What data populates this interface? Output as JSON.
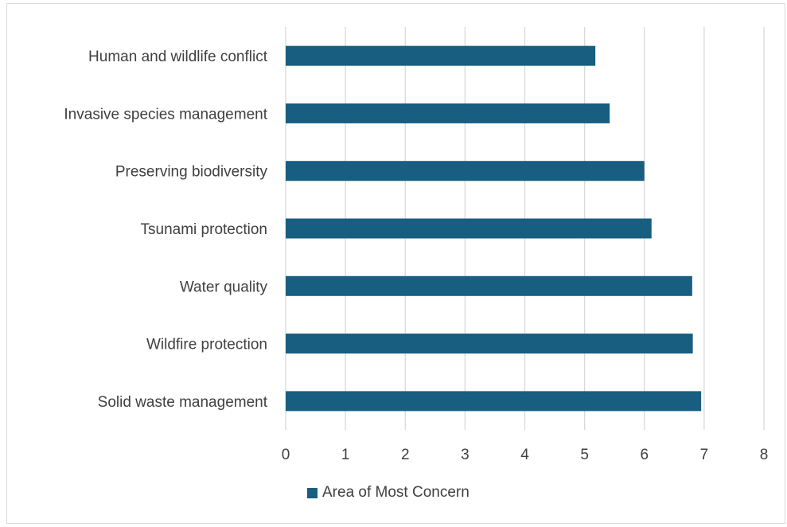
{
  "chart_data": {
    "type": "bar",
    "orientation": "horizontal",
    "categories": [
      "Human and wildlife conflict",
      "Invasive species management",
      "Preserving biodiversity",
      "Tsunami protection",
      "Water quality",
      "Wildfire protection",
      "Solid waste management"
    ],
    "series": [
      {
        "name": "Area of Most Concern",
        "values": [
          5.18,
          5.42,
          6.0,
          6.12,
          6.8,
          6.81,
          6.95
        ]
      }
    ],
    "xlim": [
      0,
      8
    ],
    "x_ticks": [
      "0",
      "1",
      "2",
      "3",
      "4",
      "5",
      "6",
      "7",
      "8"
    ],
    "grid": true,
    "legend_position": "bottom",
    "bar_color": "#175e80",
    "grid_color": "#d9d9d9",
    "title": "",
    "xlabel": "",
    "ylabel": ""
  }
}
